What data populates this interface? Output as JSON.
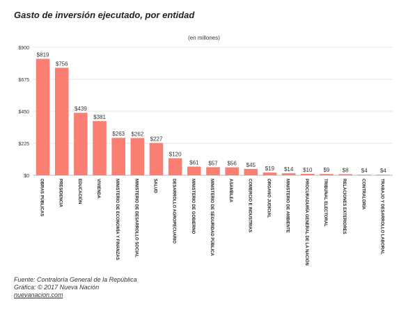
{
  "chart_data": {
    "type": "bar",
    "title": "Gasto de inversión ejecutado, por entidad",
    "subtitle": "(en millones)",
    "xlabel": "",
    "ylabel": "",
    "ylim": [
      0,
      900
    ],
    "yticks": [
      "$0",
      "$225",
      "$450",
      "$675",
      "$900"
    ],
    "ytick_values": [
      0,
      225,
      450,
      675,
      900
    ],
    "grid": true,
    "bar_color": "#f87f72",
    "categories": [
      "OBRAS PÚBLICAS",
      "PRESIDENCIA",
      "EDUCACIÓN",
      "VIVIENDA",
      "MINISTERIO DE ECONOMÍA Y FINANZAS",
      "MINISTERIO DE DESARROLLO SOCIAL",
      "SALUD",
      "DESARROLLO AGROPECUARIO",
      "MINISTERIO DE GOBIERNO",
      "MINISTERIO DE SEGURIDAD PÚBLICA",
      "ASAMBLEA",
      "COMERCIO E INDUSTRIAS",
      "ÓRGANO JUDICIAL",
      "MINISTERIO DE AMBIENTE",
      "PROCURADURÍA GENERAL DE LA NACIÓN",
      "TRIBUNAL ELECTORAL",
      "RELACIONES EXTERIORES",
      "CONTRALORÍA",
      "TRABAJO Y DESARROLLO LABORAL"
    ],
    "values": [
      819,
      756,
      439,
      381,
      263,
      262,
      227,
      120,
      61,
      57,
      56,
      45,
      19,
      14,
      10,
      9,
      8,
      4,
      4
    ],
    "labels": [
      "$819",
      "$756",
      "$439",
      "$381",
      "$263",
      "$262",
      "$227",
      "$120",
      "$61",
      "$57",
      "$56",
      "$45",
      "$19",
      "$14",
      "$10",
      "$9",
      "$8",
      "$4",
      "$4"
    ]
  },
  "footer": {
    "source": "Fuente: Contraloría General de la República",
    "credit": "Gráfica: © 2017 Nueva Nación",
    "site": "nuevanacion.com"
  }
}
